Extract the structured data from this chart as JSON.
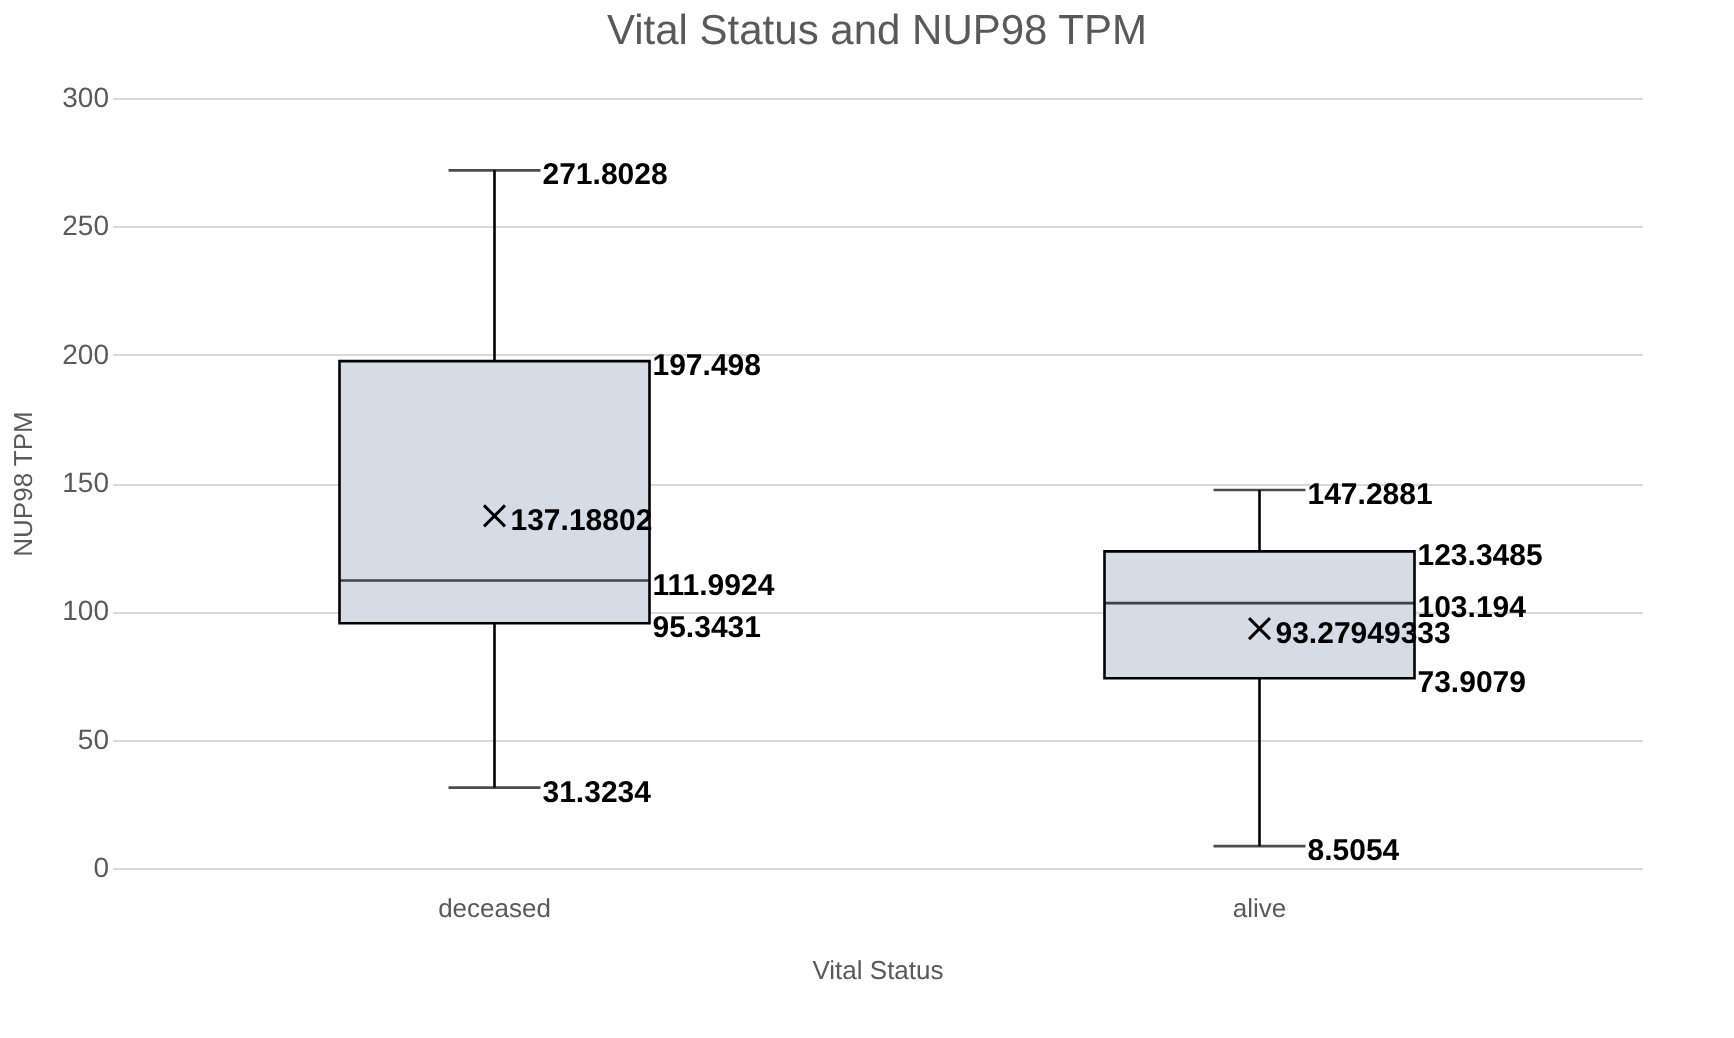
{
  "chart_data": {
    "type": "box",
    "title": "Vital Status  and NUP98 TPM",
    "xlabel": "Vital Status",
    "ylabel": "NUP98 TPM",
    "categories": [
      "deceased",
      "alive"
    ],
    "boxes": [
      {
        "low": 31.3234,
        "q1": 95.3431,
        "median": 111.9924,
        "q3": 197.498,
        "high": 271.8028,
        "mean": 137.18802
      },
      {
        "low": 8.5054,
        "q1": 73.9079,
        "median": 103.194,
        "q3": 123.3485,
        "high": 147.2881,
        "mean": 93.27949333
      }
    ],
    "color": "#d6dce5",
    "ylim": [
      0,
      300
    ],
    "yticks": [
      0,
      50,
      100,
      150,
      200,
      250,
      300
    ],
    "grid": "y",
    "marker": "cross",
    "annotations": [
      {
        "text": "271.8028",
        "x": "deceased",
        "y": 271.8028
      },
      "197.498",
      {
        "text": "137.18802",
        "x": "deceased",
        "y": 137.18802
      },
      "111.9924",
      "95.3431",
      {
        "text": "31.3234",
        "x": "deceased",
        "y": 31.3234
      },
      {
        "text": "147.2881",
        "x": "alive",
        "y": 147.2881
      },
      "123.3485",
      "103.194",
      {
        "text": "93.27949333",
        "x": "alive",
        "y": 93.27949333
      },
      "73.9079",
      {
        "text": "8.5054",
        "x": "alive",
        "y": 8.5054
      }
    ]
  }
}
